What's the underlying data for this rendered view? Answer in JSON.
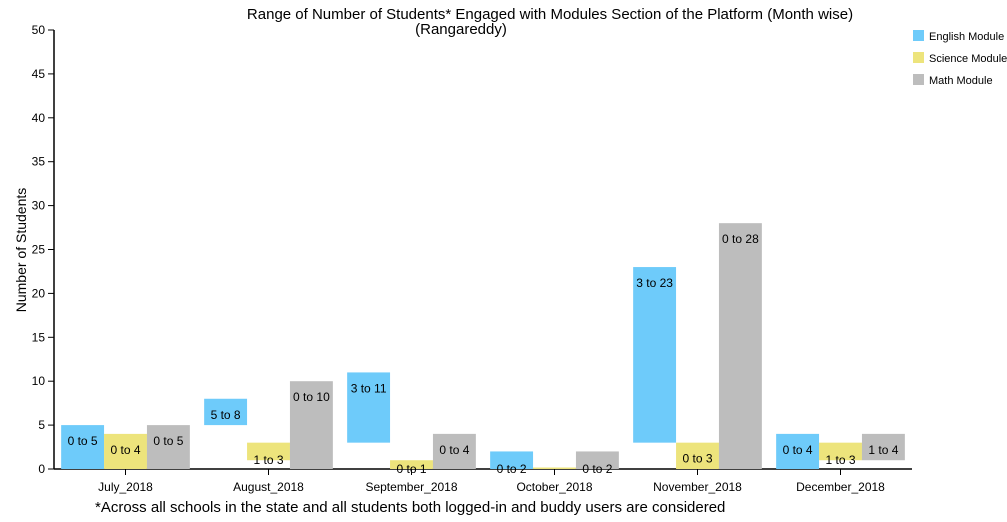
{
  "chart_data": {
    "type": "bar",
    "title": "Range of Number of Students* Engaged with Modules Section of the Platform (Month wise)",
    "subtitle": "(Rangareddy)",
    "ylabel": "Number of Students",
    "xlabel": "",
    "ylim": [
      0,
      50
    ],
    "yticks": [
      0,
      5,
      10,
      15,
      20,
      25,
      30,
      35,
      40,
      45,
      50
    ],
    "categories": [
      "July_2018",
      "August_2018",
      "September_2018",
      "October_2018",
      "November_2018",
      "December_2018"
    ],
    "legend_position": "top-right",
    "grid": false,
    "series": [
      {
        "name": "English Module",
        "color": "#6ecbfa",
        "ranges": [
          [
            0,
            5
          ],
          [
            5,
            8
          ],
          [
            3,
            11
          ],
          [
            0,
            2
          ],
          [
            3,
            23
          ],
          [
            0,
            4
          ]
        ],
        "labels": [
          "0 to 5",
          "5 to 8",
          "3 to 11",
          "0 to 2",
          "3 to 23",
          "0 to 4"
        ]
      },
      {
        "name": "Science Module",
        "color": "#ede47c",
        "ranges": [
          [
            0,
            4
          ],
          [
            1,
            3
          ],
          [
            0,
            1
          ],
          [
            0,
            0
          ],
          [
            0,
            3
          ],
          [
            1,
            3
          ]
        ],
        "labels": [
          "0 to 4",
          "1 to 3",
          "0 to 1",
          "",
          "0 to 3",
          "1 to 3"
        ]
      },
      {
        "name": "Math Module",
        "color": "#bdbdbd",
        "ranges": [
          [
            0,
            5
          ],
          [
            0,
            10
          ],
          [
            0,
            4
          ],
          [
            0,
            2
          ],
          [
            0,
            28
          ],
          [
            1,
            4
          ]
        ],
        "labels": [
          "0 to 5",
          "0 to 10",
          "0 to 4",
          "0 to 2",
          "0 to 28",
          "1 to 4"
        ]
      }
    ]
  },
  "footnote": "*Across all schools in the state and all students both logged-in and buddy users are considered"
}
